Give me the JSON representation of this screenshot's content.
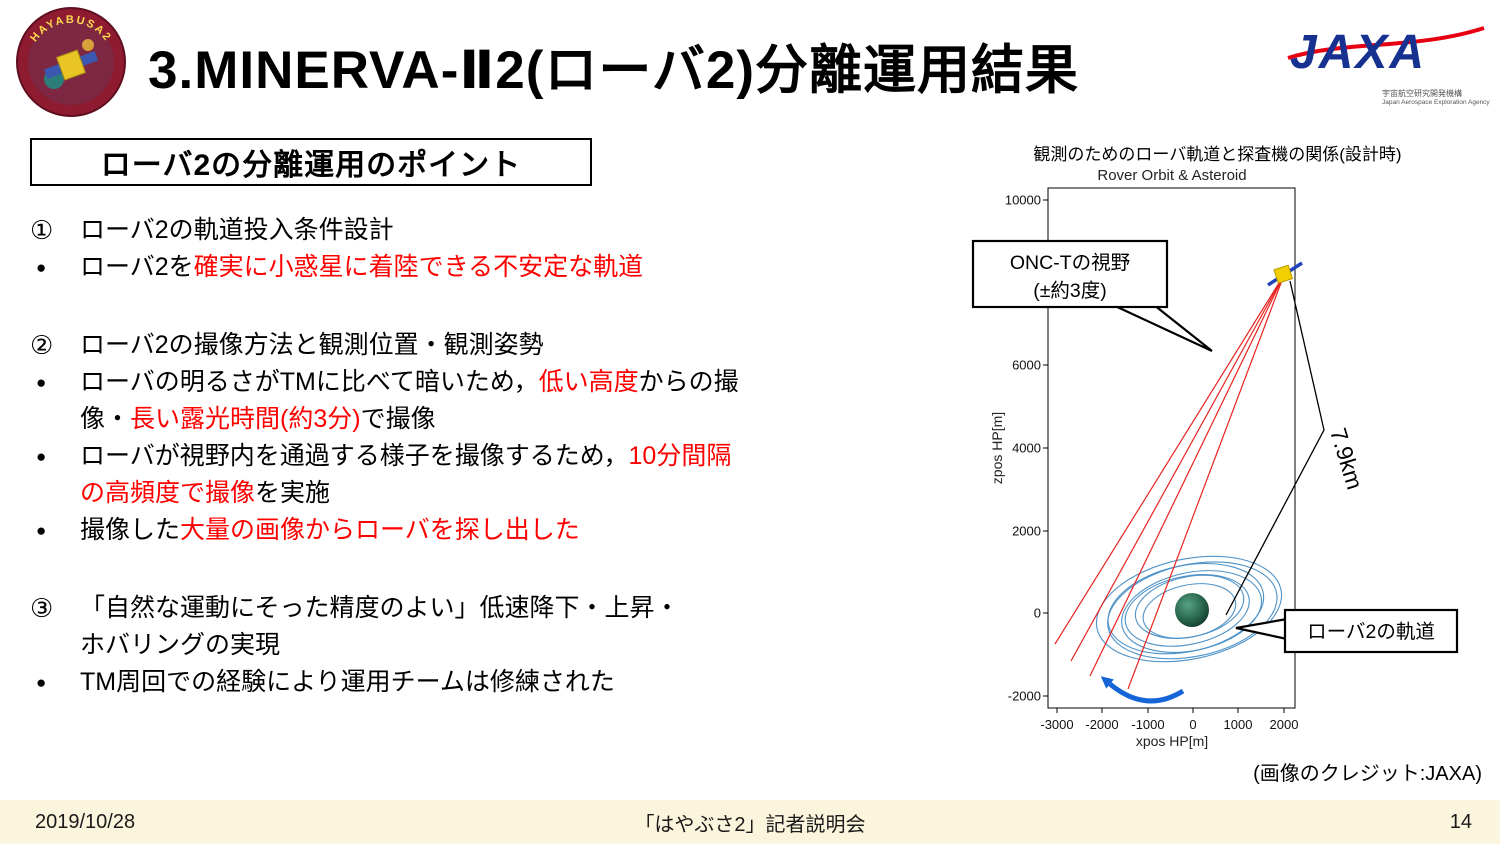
{
  "header": {
    "title": "3.MINERVA-Ⅱ2(ローバ2)分離運用結果",
    "badge_text": "HAYABUSA2",
    "jaxa_logo": "JAXA",
    "jaxa_sub1": "宇宙航空研究開発機構",
    "jaxa_sub2": "Japan Aerospace Exploration Agency"
  },
  "points": {
    "box_label": "ローバ2の分離運用のポイント",
    "items": [
      {
        "marker": "①",
        "gap": false,
        "segments": [
          {
            "text": "ローバ2の軌道投入条件設計",
            "red": false
          }
        ]
      },
      {
        "marker": "●",
        "gap": false,
        "segments": [
          {
            "text": "ローバ2を",
            "red": false
          },
          {
            "text": "確実に小惑星に着陸できる不安定な軌道",
            "red": true
          }
        ]
      },
      {
        "marker": "②",
        "gap": true,
        "segments": [
          {
            "text": "ローバ2の撮像方法と観測位置・観測姿勢",
            "red": false
          }
        ]
      },
      {
        "marker": "●",
        "gap": false,
        "segments": [
          {
            "text": "ローバの明るさがTMに比べて暗いため，",
            "red": false
          },
          {
            "text": "低い高度",
            "red": true
          },
          {
            "text": "からの撮",
            "red": false
          },
          {
            "br": true
          },
          {
            "text": "像・",
            "red": false
          },
          {
            "text": "長い露光時間(約3分)",
            "red": true
          },
          {
            "text": "で撮像",
            "red": false
          }
        ]
      },
      {
        "marker": "●",
        "gap": false,
        "segments": [
          {
            "text": "ローバが視野内を通過する様子を撮像するため，",
            "red": false
          },
          {
            "text": "10分間隔",
            "red": true
          },
          {
            "br": true
          },
          {
            "text": "の高頻度で撮像",
            "red": true
          },
          {
            "text": "を実施",
            "red": false
          }
        ]
      },
      {
        "marker": "●",
        "gap": false,
        "segments": [
          {
            "text": "撮像した",
            "red": false
          },
          {
            "text": "大量の画像からローバを探し出した",
            "red": true
          }
        ]
      },
      {
        "marker": "③",
        "gap": true,
        "segments": [
          {
            "text": "「自然な運動にそった精度のよい」低速降下・上昇・",
            "red": false
          },
          {
            "br": true
          },
          {
            "text": "ホバリングの実現",
            "red": false
          }
        ]
      },
      {
        "marker": "●",
        "gap": false,
        "segments": [
          {
            "text": "TM周回での経験により運用チームは修練された",
            "red": false
          }
        ]
      }
    ]
  },
  "chart": {
    "caption": "観測のためのローバ軌道と探査機の関係(設計時)",
    "plot_title": "Rover Orbit & Asteroid",
    "xlabel": "xpos HP[m]",
    "ylabel": "zpos HP[m]",
    "callout_fov_line1": "ONC-Tの視野",
    "callout_fov_line2": "(±約3度)",
    "callout_orbit": "ローバ2の軌道",
    "distance_label": "7.9km",
    "credit": "(画像のクレジット:JAXA)"
  },
  "chart_data": {
    "type": "line",
    "title": "Rover Orbit & Asteroid",
    "xlabel": "xpos HP[m]",
    "ylabel": "zpos HP[m]",
    "xlim": [
      -3200,
      2250
    ],
    "ylim": [
      -2300,
      10300
    ],
    "x_ticks": [
      -3000,
      -2000,
      -1000,
      0,
      1000,
      2000
    ],
    "y_ticks": [
      -2000,
      0,
      2000,
      4000,
      6000,
      8000,
      10000
    ],
    "grid": false,
    "legend": false,
    "spacecraft_position_m": [
      2000,
      7900
    ],
    "asteroid_position_m": [
      0,
      0
    ],
    "distance_label": "7.9km",
    "series": [
      {
        "name": "rover-orbit",
        "color": "#2f7fbe",
        "description": "nested elliptical rover orbits around the asteroid centered near (0,0), extent roughly x -2100..1900 m, z -1200..1200 m"
      },
      {
        "name": "onc-t-line-of-sight",
        "color": "#e8231f",
        "description": "red sight lines fanning from the spacecraft at (2000, 7900) down past the asteroid toward lower left"
      }
    ],
    "annotations": [
      "ONC-Tの視野 (±約3度)",
      "7.9km",
      "ローバ2の軌道"
    ]
  },
  "footer": {
    "date": "2019/10/28",
    "center": "「はやぶさ2」記者説明会",
    "page": "14"
  }
}
